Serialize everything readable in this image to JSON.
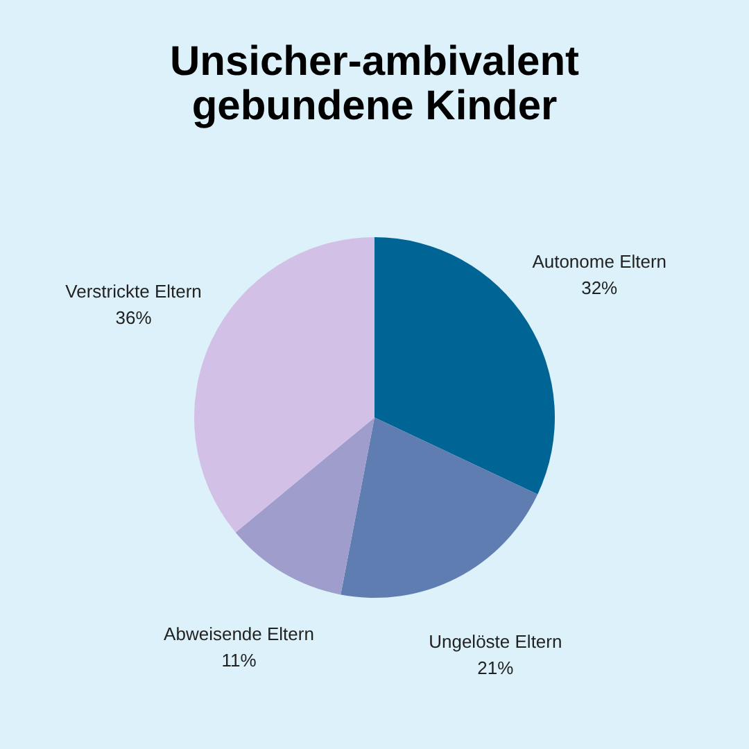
{
  "chart_data": {
    "type": "pie",
    "title": "Unsicher-ambivalent\ngebundene Kinder",
    "categories": [
      "Autonome Eltern",
      "Ungelöste Eltern",
      "Abweisende Eltern",
      "Verstrickte Eltern"
    ],
    "values": [
      32,
      21,
      11,
      36
    ],
    "colors": [
      "#006494",
      "#5f7db0",
      "#9e9dcb",
      "#d3c0e6"
    ],
    "value_labels": [
      "32%",
      "21%",
      "11%",
      "36%"
    ],
    "legend": false
  }
}
